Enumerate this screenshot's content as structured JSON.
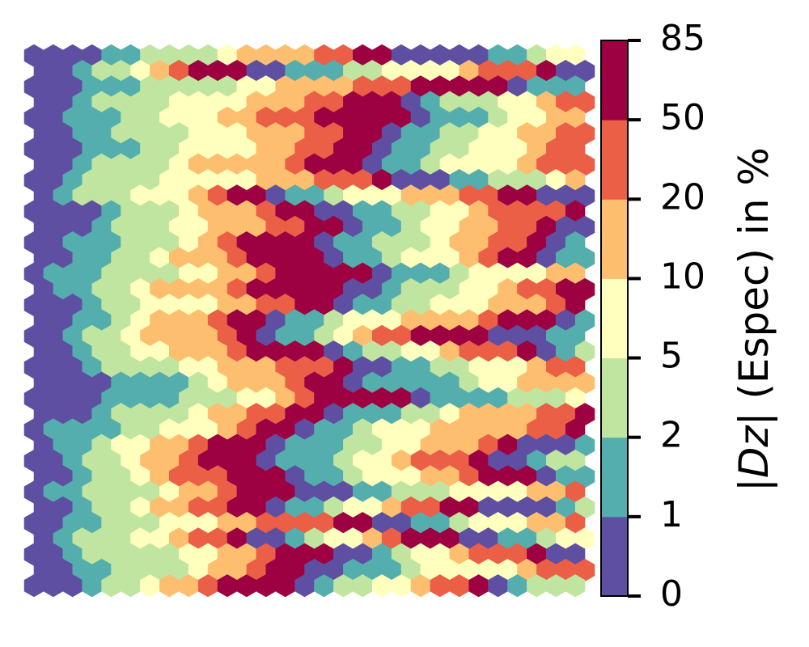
{
  "chart_data": {
    "type": "heatmap",
    "layout": "hexagonal",
    "grid": {
      "cols": 29,
      "rows": 35
    },
    "cells_rle": [
      "4 2 4 1 4 2 2 5 2 1 4 2 8 2 4",
      "2 1 2 1 1 1 3 2 3 2 4 1 3 1 3 2 3 2 5 3 4",
      "3 3 5 2 4 3 5 1 4 1 4 1 4 2 5 1 4 1 4 1 3 2 3",
      "2 1 4 4 3 2 3 1 1 3 2 1 5 2 2 3 3 3 2 2 3 2 3 1 4 2",
      "2 3 2 3 2 3 5 1 3 1 2 3 5 1 3 3 1 3 2 1 4 1 1 3 2 1 4 1 3 2",
      "2 2 4 3 3 2 2 1 2 2 2 2 4 2 1 1 1 5 1 3 3 2 1 1 2 1 6",
      "3 3 2 4 2 2 2 1 2 2 3 1 4 1 5 1 4 1 1 2 3 1 5 1 4 3",
      "2 1 4 1 5 1 3 1 2 1 4 1 3 2 3 1 1 2 3 1 6 3 3",
      "2 1 4 5 3 3 1 3 2 3 1 3 3 1 3 3 2 1 6 2 1 2",
      "1 1 3 3 1 1 2 1 2 1 3 3 2 2 3 3 2 1 3 1 3 1 3 1 5 1 3 1 4 1 1 2",
      "4 1 3 1 3 1 2 2 2 2 2 1 4 1 3 1 1 2 2 1 1 3 3 2 3 2 4 3",
      "3 1 3 2 3 2 2 1 2 1 2 2 2 1 2 1 2 1 3 1 2 4 2 3 3 3 1 3 2 2",
      "2 3 3 1 1 1 4 1 2 3 1 2 2 1 1 4 1 1 2 1 4 2 2 2 2 2 4 2 4 1",
      "2 2 2 1 3 1 4 1 2 1 3 1 1 2 1 4 1 3 1 3 3 1 2 1 3 2",
      "1 3 4 2 2 1 5 1 3 1 4 2 1 1 5 2 2 1 5 1 1 3 3 1 2",
      "1 2 2 1 4 1 5 2 1 3 2 1 2 4 2 1 3 2 2 1 3 1 4 1 2",
      "3 1 2 4 2 2 2 1 2 2 3 3 1 3 1 3 2 2 1 2 4 1 2 3",
      "2 2 1 1 3 1 2 1 2 1 3 4 1 3 1 2 2 2 2 3 2 2 4",
      "2 1 2 1 4 1 1 1 2 1 1 1 2 4 3 3 2 2 4 1 1 3 2 1 3 1",
      "2 1 2 2 3 1 4 1 1 2 2 1 3 1 1 1 3 3 1 2 2 1 4 1 2 1 3 2",
      "3 1 4 2 3 3 1 2 2 2 3 1 2 1 3 4 1 2 1 2 4 3 3 1 1 1 2",
      "4 4 1 1 3 1 2 1 5 1 2 4 2 4 4 1 1 2 3 2 3",
      "4 4 3 2 1 1 5 1 4 3 1 3 4 2 2 3 1 3 1 1 2",
      "3 1 4 1 2 2 2 1 3 2 1 4 2 4 1 1 2 3 1 3 4 1 1 1 3",
      "1 4 2 3 1 1 2 1 2 1 3 5 2 2 1 3 2 1 3 2 1 3",
      "1 2 1 2 2 1 3 1 3 2 2 3 1 1 3 1 1 2 3 2 3 1 3 1 3 2",
      "2 1 2 1 2 1 3 1 3 1 2 1 3 1 2 1 3 4 4 1 2 1 2 1 2 1 3 1",
      "2 1 2 1 1 3 3 1 2 1 3 2 1 3 1 3 4 2 2 1 2 1 3",
      "1 2 4 1 2 1 3 3 2 3 4 2 2 1 2 2 1 2 4 1 2 4 1 1",
      "2 1 2 1 2 2 2 1 2 1 2 1 2 2 4 1 1 2 2 1 3 4 1 2 2 1",
      "2 2 3 3 2 4 2 2 2 1 3 2 1 1 3 1 4 3 2 1 3 2",
      "1 1 3 2 1 2 1 2 1 1 2 1 1 3 2 2 1 3 2 1 4 2 1 3 2 1 1",
      "2 1 5 2 2 1 3 2 1 1 2 1 3 1 3 1 2 1 4 1 2 1 1 2 3 1 3 3",
      "2 2 4 1 2 1 2 2 3 1 5 1 4 1 2 1 5 1 4 2",
      "3 1 2 1 2 1 4 1 1 2 2 1 2 1 1 1 3 1 4 2 2 3 1"
    ],
    "color_bins": [
      {
        "range": [
          0,
          1
        ],
        "color": "#5e4fa2"
      },
      {
        "range": [
          1,
          2
        ],
        "color": "#54aead"
      },
      {
        "range": [
          2,
          5
        ],
        "color": "#bfe5a0"
      },
      {
        "range": [
          5,
          10
        ],
        "color": "#ffffbe"
      },
      {
        "range": [
          10,
          20
        ],
        "color": "#fdbf6f"
      },
      {
        "range": [
          20,
          50
        ],
        "color": "#ea5f46"
      },
      {
        "range": [
          50,
          85
        ],
        "color": "#9e0142"
      }
    ],
    "colorbar": {
      "ticks": [
        "0",
        "1",
        "2",
        "5",
        "10",
        "20",
        "50",
        "85"
      ],
      "label_prefix": "|",
      "label_italic": "Dz",
      "label_suffix": "| (Espec) in %"
    },
    "axes_visible": false
  }
}
